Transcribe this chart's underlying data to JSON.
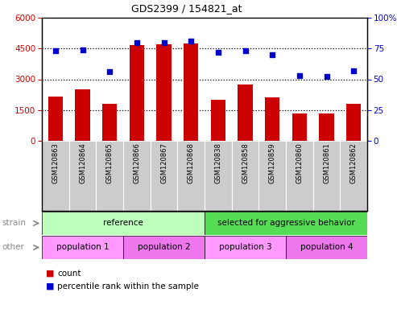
{
  "title": "GDS2399 / 154821_at",
  "samples": [
    "GSM120863",
    "GSM120864",
    "GSM120865",
    "GSM120866",
    "GSM120867",
    "GSM120868",
    "GSM120838",
    "GSM120858",
    "GSM120859",
    "GSM120860",
    "GSM120861",
    "GSM120862"
  ],
  "counts": [
    2150,
    2500,
    1800,
    4650,
    4700,
    4750,
    2000,
    2750,
    2100,
    1350,
    1350,
    1800
  ],
  "percentiles": [
    73,
    74,
    56,
    80,
    80,
    81,
    72,
    73,
    70,
    53,
    52,
    57
  ],
  "ylim_left": [
    0,
    6000
  ],
  "ylim_right": [
    0,
    100
  ],
  "yticks_left": [
    0,
    1500,
    3000,
    4500,
    6000
  ],
  "yticks_right": [
    0,
    25,
    50,
    75,
    100
  ],
  "bar_color": "#cc0000",
  "dot_color": "#0000cc",
  "strain_groups": [
    {
      "label": "reference",
      "start": 0,
      "end": 6,
      "color": "#bbffbb"
    },
    {
      "label": "selected for aggressive behavior",
      "start": 6,
      "end": 12,
      "color": "#55dd55"
    }
  ],
  "other_groups": [
    {
      "label": "population 1",
      "start": 0,
      "end": 3,
      "color": "#ff99ff"
    },
    {
      "label": "population 2",
      "start": 3,
      "end": 6,
      "color": "#ee77ee"
    },
    {
      "label": "population 3",
      "start": 6,
      "end": 9,
      "color": "#ff99ff"
    },
    {
      "label": "population 4",
      "start": 9,
      "end": 12,
      "color": "#ee77ee"
    }
  ],
  "strain_label": "strain",
  "other_label": "other",
  "legend_count_label": "count",
  "legend_pct_label": "percentile rank within the sample",
  "bg_color": "#ffffff",
  "tick_label_color_left": "#cc0000",
  "tick_label_color_right": "#0000cc",
  "xlabel_area_color": "#cccccc"
}
